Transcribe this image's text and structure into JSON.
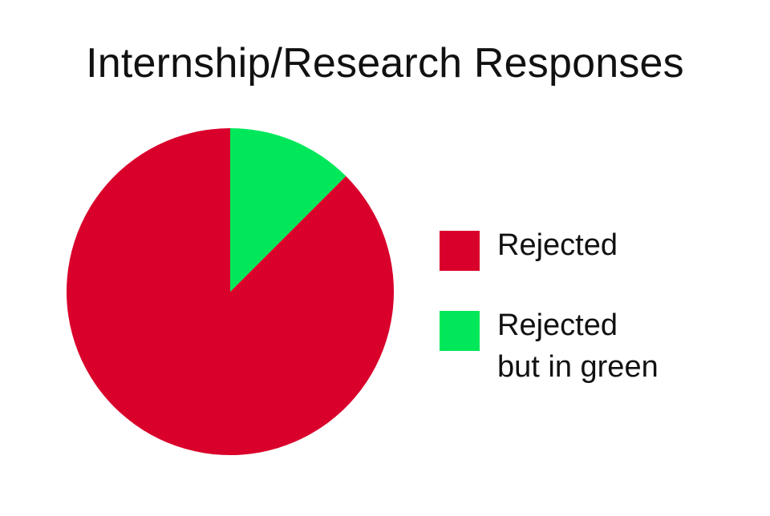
{
  "chart_data": {
    "type": "pie",
    "title": "Internship/Research Responses",
    "categories": [
      "Rejected",
      "Rejected\nbut in green"
    ],
    "values": [
      87.5,
      12.5
    ],
    "colors": [
      "#d9002b",
      "#00e85a"
    ],
    "start_angle_deg": 0,
    "direction": "clockwise",
    "legend_position": "right"
  }
}
